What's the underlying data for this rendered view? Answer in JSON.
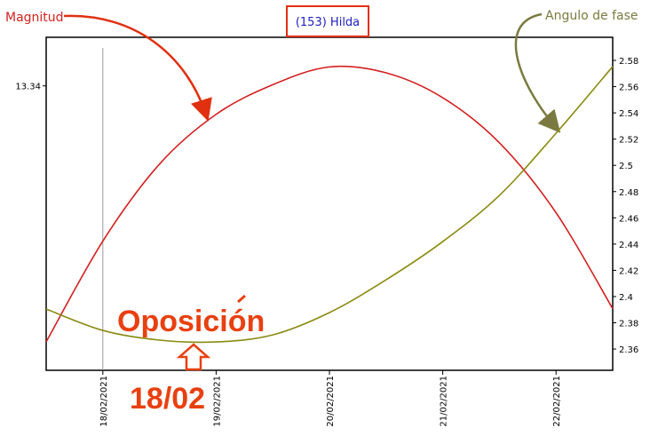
{
  "chart_data": {
    "type": "line",
    "title": "(153) Hilda",
    "x": [
      17.5,
      18,
      18.5,
      19,
      19.5,
      20,
      20.5,
      21,
      21.5,
      22,
      22.5
    ],
    "xlim": [
      17.5,
      22.5
    ],
    "xticks": [
      {
        "value": 18,
        "label": "18/02/2021"
      },
      {
        "value": 19,
        "label": "19/02/2021"
      },
      {
        "value": 20,
        "label": "20/02/2021"
      },
      {
        "value": 21,
        "label": "21/02/2021"
      },
      {
        "value": 22,
        "label": "22/02/2021"
      }
    ],
    "ylim": [
      13.1,
      13.381
    ],
    "yticks": [
      13.34
    ],
    "y2lim": [
      2.3438,
      2.5976
    ],
    "y2ticks": [
      2.36,
      2.38,
      2.4,
      2.42,
      2.44,
      2.46,
      2.48,
      2.5,
      2.52,
      2.54,
      2.56,
      2.58
    ],
    "series": [
      {
        "name": "Magnitud",
        "color": "#d42020",
        "values": [
          13.124,
          13.209,
          13.274,
          13.316,
          13.341,
          13.356,
          13.351,
          13.33,
          13.292,
          13.233,
          13.152
        ]
      },
      {
        "name": "Angulo de fase",
        "color": "#8a8a10",
        "axis": "y2",
        "values": [
          2.3905,
          2.3742,
          2.3668,
          2.3654,
          2.3708,
          2.3878,
          2.4128,
          2.4419,
          2.4771,
          2.5245,
          2.5753
        ]
      }
    ],
    "annotations": [
      {
        "text": "Oposición"
      },
      {
        "text": "18/02",
        "x": 18
      }
    ]
  }
}
